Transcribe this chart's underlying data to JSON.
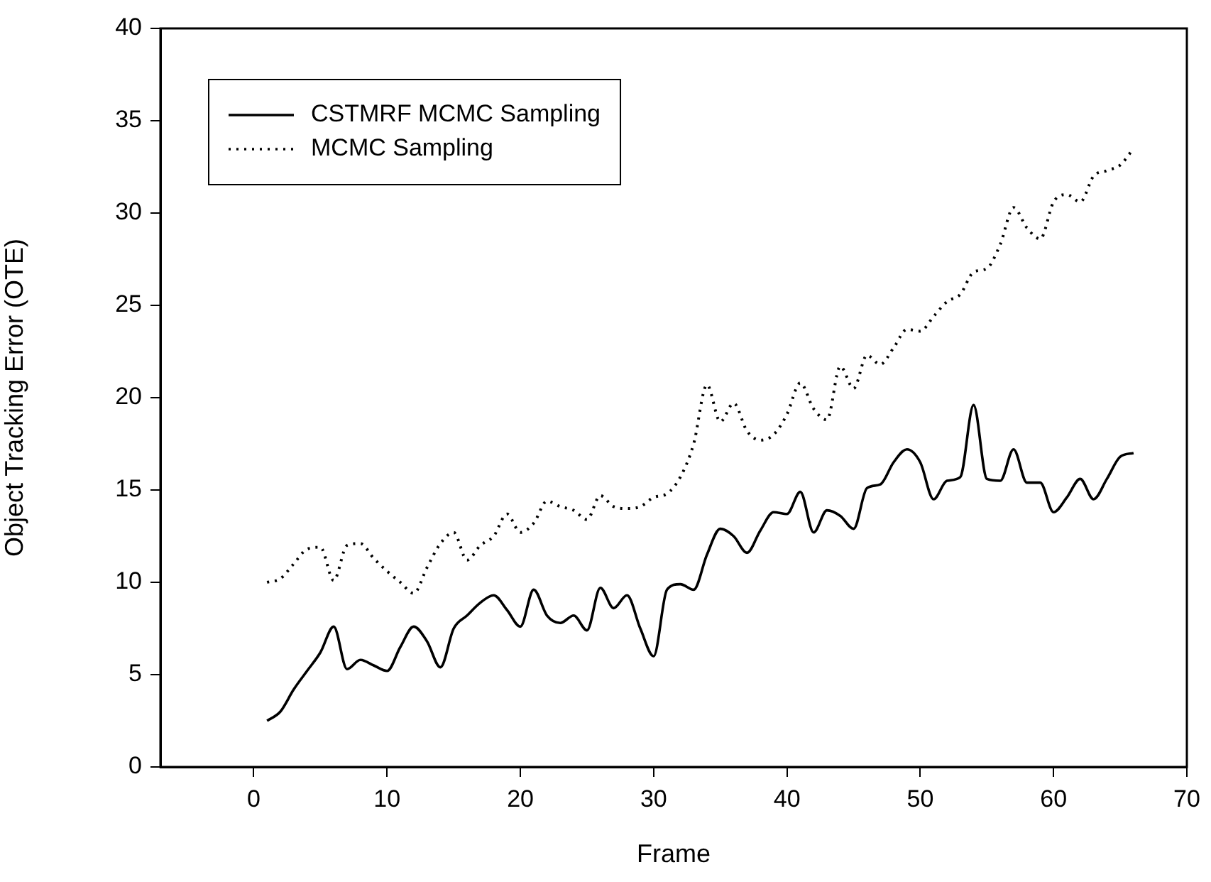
{
  "chart_data": {
    "type": "line",
    "xlabel": "Frame",
    "ylabel": "Object Tracking Error (OTE)",
    "x": [
      1,
      2,
      3,
      4,
      5,
      6,
      7,
      8,
      9,
      10,
      11,
      12,
      13,
      14,
      15,
      16,
      17,
      18,
      19,
      20,
      21,
      22,
      23,
      24,
      25,
      26,
      27,
      28,
      29,
      30,
      31,
      32,
      33,
      34,
      35,
      36,
      37,
      38,
      39,
      40,
      41,
      42,
      43,
      44,
      45,
      46,
      47,
      48,
      49,
      50,
      51,
      52,
      53,
      54,
      55,
      56,
      57,
      58,
      59,
      60,
      61,
      62,
      63,
      64,
      65,
      66
    ],
    "series": [
      {
        "name": "CSTMRF MCMC Sampling",
        "color": "#000000",
        "line_style": "solid",
        "values": [
          2.5,
          3,
          4.2,
          5.2,
          6.2,
          7.6,
          5.3,
          5.8,
          5.5,
          5.2,
          6.5,
          7.6,
          6.8,
          5.4,
          7.5,
          8.2,
          8.9,
          9.3,
          8.5,
          7.6,
          9.6,
          8.2,
          7.8,
          8.2,
          7.4,
          9.7,
          8.6,
          9.3,
          7.5,
          6.0,
          9.6,
          9.9,
          9.6,
          11.5,
          12.9,
          12.5,
          11.6,
          12.8,
          13.8,
          13.7,
          14.9,
          12.7,
          13.9,
          13.6,
          12.9,
          15.1,
          15.3,
          16.5,
          17.2,
          16.5,
          14.5,
          15.5,
          15.7,
          19.6,
          15.6,
          15.5,
          17.2,
          15.4,
          15.4,
          13.8,
          14.6,
          15.6,
          14.5,
          15.6,
          16.8,
          17.0
        ]
      },
      {
        "name": "MCMC Sampling",
        "color": "#000000",
        "line_style": "dotted",
        "values": [
          10,
          10.2,
          11,
          11.8,
          11.9,
          10.1,
          12,
          12.1,
          11.3,
          10.6,
          10,
          9.4,
          10.8,
          12.1,
          12.7,
          11.2,
          12,
          12.5,
          13.7,
          12.7,
          13.2,
          14.4,
          14.1,
          13.9,
          13.4,
          14.7,
          14.1,
          14,
          14.1,
          14.6,
          14.8,
          15.7,
          17.5,
          20.7,
          18.7,
          19.7,
          18.2,
          17.7,
          18,
          19.1,
          20.8,
          19.4,
          18.8,
          21.7,
          20.5,
          22.3,
          21.8,
          22.7,
          23.7,
          23.6,
          24.4,
          25.2,
          25.6,
          26.8,
          27,
          28.3,
          30.3,
          29.2,
          28.6,
          30.6,
          31,
          30.6,
          32,
          32.3,
          32.6,
          33.5
        ]
      }
    ],
    "xlim": [
      -7,
      70
    ],
    "xticks": [
      0,
      10,
      20,
      30,
      40,
      50,
      60,
      70
    ],
    "ylim": [
      0,
      40
    ],
    "yticks": [
      0,
      5,
      10,
      15,
      20,
      25,
      30,
      35,
      40
    ],
    "grid": false,
    "legend": "top left",
    "marker": "none"
  }
}
